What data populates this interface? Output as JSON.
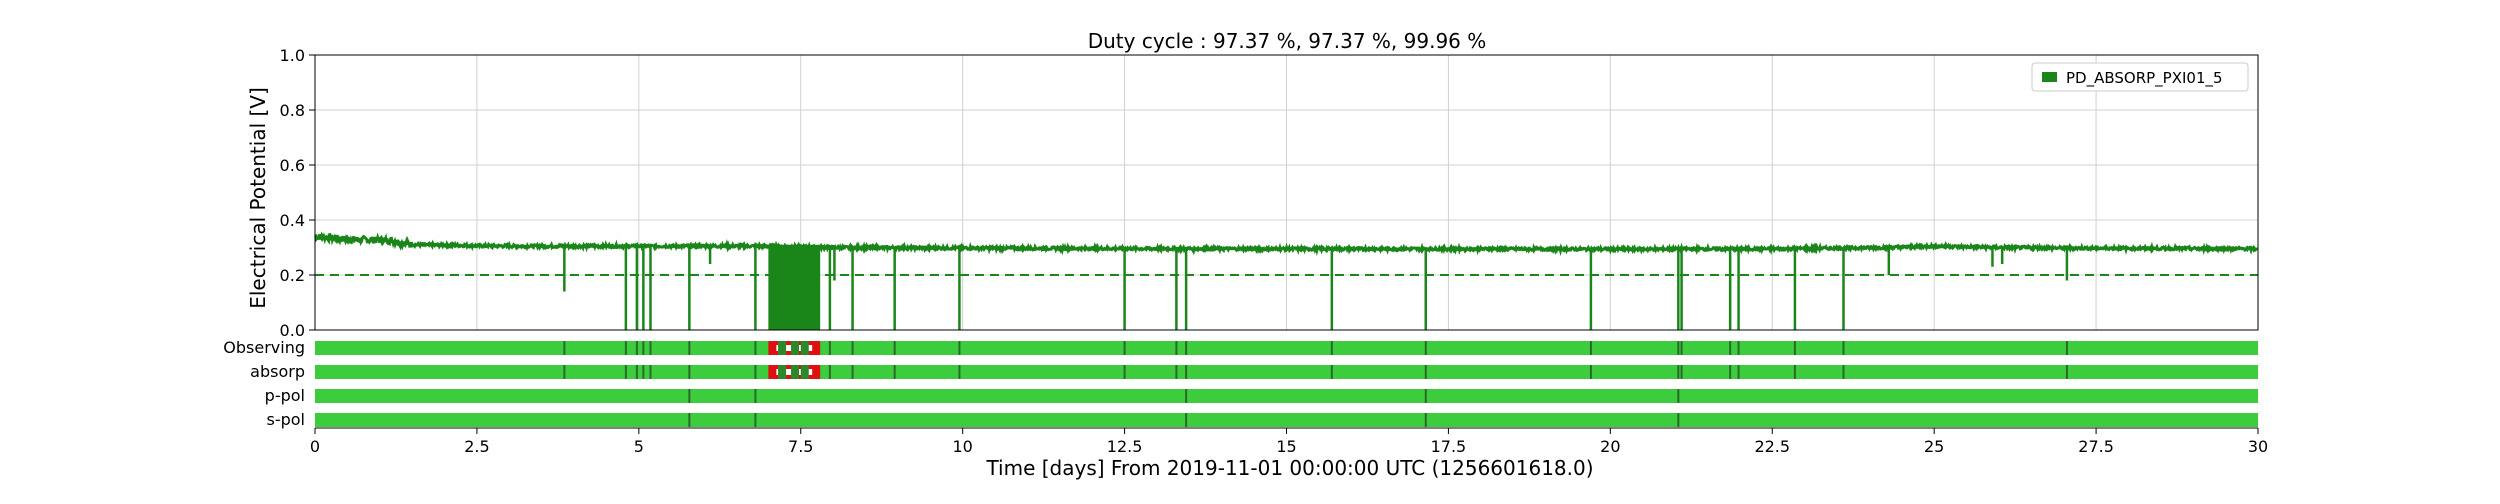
{
  "chart_data": {
    "type": "line",
    "title": "Duty cycle : 97.37 %, 97.37 %, 99.96 %",
    "xlabel": "Time [days] From 2019-11-01 00:00:00 UTC (1256601618.0)",
    "ylabel": "Electrical Potential [V]",
    "xlim": [
      0,
      30
    ],
    "ylim": [
      0,
      1.0
    ],
    "xticks": [
      "0",
      "2.5",
      "5",
      "7.5",
      "10",
      "12.5",
      "15",
      "17.5",
      "20",
      "22.5",
      "25",
      "27.5",
      "30"
    ],
    "yticks": [
      "0.0",
      "0.2",
      "0.4",
      "0.6",
      "0.8",
      "1.0"
    ],
    "grid": true,
    "legend_position": "top-right",
    "threshold": 0.2,
    "series": [
      {
        "name": "PD_ABSORP_PXI01_5",
        "color": "#1a861a",
        "baseline": [
          [
            0,
            0.34
          ],
          [
            0.5,
            0.33
          ],
          [
            1.2,
            0.325
          ],
          [
            1.5,
            0.31
          ],
          [
            3,
            0.305
          ],
          [
            5,
            0.305
          ],
          [
            6,
            0.305
          ],
          [
            7,
            0.305
          ],
          [
            8,
            0.3
          ],
          [
            10,
            0.298
          ],
          [
            12.5,
            0.296
          ],
          [
            15,
            0.295
          ],
          [
            17.5,
            0.295
          ],
          [
            20,
            0.294
          ],
          [
            22.5,
            0.295
          ],
          [
            24.3,
            0.3
          ],
          [
            25,
            0.305
          ],
          [
            26,
            0.3
          ],
          [
            27,
            0.298
          ],
          [
            30,
            0.295
          ]
        ],
        "dips": [
          [
            3.85,
            0.14
          ],
          [
            4.8,
            0.0
          ],
          [
            4.97,
            0.0
          ],
          [
            5.07,
            0.0
          ],
          [
            5.18,
            0.0
          ],
          [
            5.78,
            0.0
          ],
          [
            6.1,
            0.24
          ],
          [
            6.8,
            0.0
          ],
          [
            7.95,
            0.0
          ],
          [
            8.02,
            0.18
          ],
          [
            8.3,
            0.0
          ],
          [
            8.95,
            0.0
          ],
          [
            9.95,
            0.0
          ],
          [
            12.5,
            0.0
          ],
          [
            13.3,
            0.0
          ],
          [
            13.45,
            0.0
          ],
          [
            15.7,
            0.0
          ],
          [
            17.15,
            0.0
          ],
          [
            19.7,
            0.0
          ],
          [
            21.05,
            0.0
          ],
          [
            21.1,
            0.0
          ],
          [
            21.85,
            0.0
          ],
          [
            21.98,
            0.0
          ],
          [
            22.85,
            0.0
          ],
          [
            23.6,
            0.0
          ],
          [
            24.3,
            0.2
          ],
          [
            25.9,
            0.23
          ],
          [
            26.05,
            0.24
          ],
          [
            27.05,
            0.18
          ]
        ],
        "dense_band": [
          7.0,
          7.8
        ]
      }
    ],
    "segments": [
      {
        "name": "Observing",
        "color": "#3dcc3d",
        "bad_color": "#dd1111",
        "gaps": [
          3.85,
          4.8,
          4.97,
          5.07,
          5.18,
          5.78,
          6.8,
          7.95,
          8.3,
          8.95,
          9.95,
          12.5,
          13.3,
          13.45,
          15.7,
          17.15,
          19.7,
          21.05,
          21.1,
          21.85,
          21.98,
          22.85,
          23.6,
          27.05
        ],
        "bad_range": [
          7.0,
          7.8
        ]
      },
      {
        "name": "absorp",
        "color": "#3dcc3d",
        "bad_color": "#dd1111",
        "gaps": [
          3.85,
          4.8,
          4.97,
          5.07,
          5.18,
          5.78,
          6.8,
          7.95,
          8.3,
          8.95,
          9.95,
          12.5,
          13.3,
          13.45,
          15.7,
          17.15,
          19.7,
          21.05,
          21.1,
          21.85,
          21.98,
          22.85,
          23.6,
          27.05
        ],
        "bad_range": [
          7.0,
          7.8
        ]
      },
      {
        "name": "p-pol",
        "color": "#3dcc3d",
        "bad_color": "#dd1111",
        "gaps": [
          5.78,
          6.8,
          13.45,
          17.15,
          21.05
        ],
        "bad_range": null
      },
      {
        "name": "s-pol",
        "color": "#3dcc3d",
        "bad_color": "#dd1111",
        "gaps": [
          5.78,
          6.8,
          13.45,
          17.15,
          21.05
        ],
        "bad_range": null
      }
    ]
  }
}
